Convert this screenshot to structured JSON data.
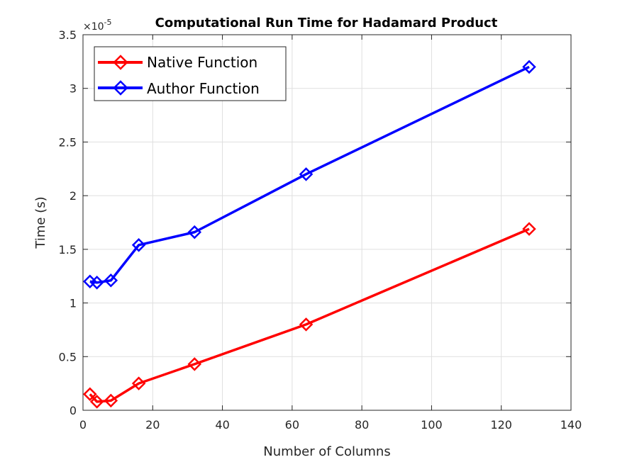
{
  "chart_data": {
    "type": "line",
    "title": "Computational Run Time for Hadamard Product",
    "xlabel": "Number of Columns",
    "ylabel": "Time (s)",
    "y_exponent_label": "×10",
    "y_exponent_power": "-5",
    "xlim": [
      0,
      140
    ],
    "ylim": [
      0,
      3.5
    ],
    "x_ticks": [
      0,
      20,
      40,
      60,
      80,
      100,
      120,
      140
    ],
    "x_tick_labels": [
      "0",
      "20",
      "40",
      "60",
      "80",
      "100",
      "120",
      "140"
    ],
    "y_ticks": [
      0,
      0.5,
      1,
      1.5,
      2,
      2.5,
      3,
      3.5
    ],
    "y_tick_labels": [
      "0",
      "0.5",
      "1",
      "1.5",
      "2",
      "2.5",
      "3",
      "3.5"
    ],
    "grid": true,
    "legend_position": "top-left",
    "x": [
      2,
      4,
      8,
      16,
      32,
      64,
      128
    ],
    "series": [
      {
        "name": "Native Function",
        "color": "#ff0000",
        "marker": "diamond",
        "values": [
          0.15,
          0.08,
          0.09,
          0.25,
          0.43,
          0.8,
          1.69
        ]
      },
      {
        "name": "Author Function",
        "color": "#0000ff",
        "marker": "diamond",
        "values": [
          1.2,
          1.19,
          1.21,
          1.54,
          1.66,
          2.2,
          3.2
        ]
      }
    ]
  }
}
